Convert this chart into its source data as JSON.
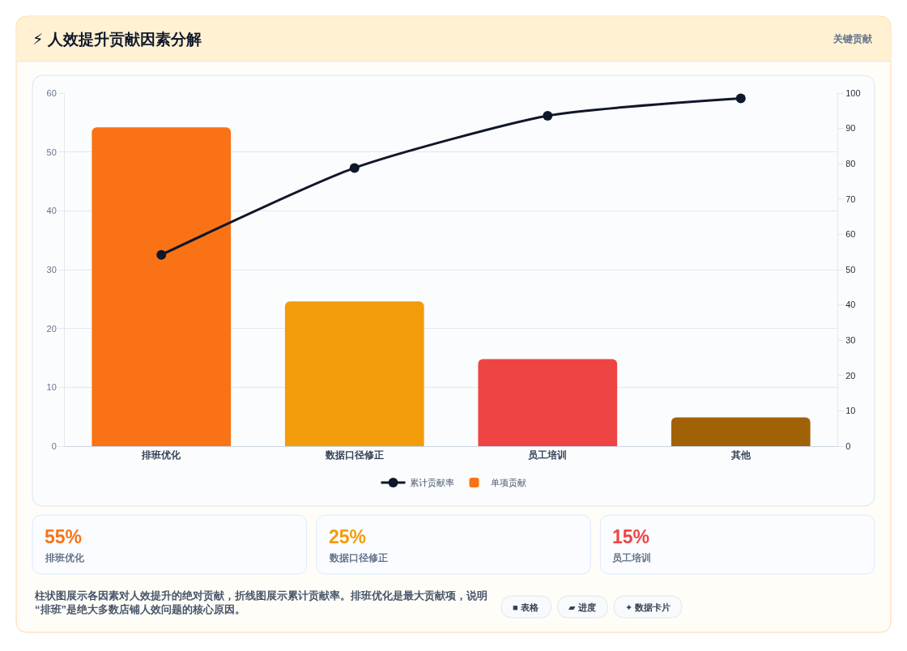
{
  "chart_data": [
    {
      "type": "bar",
      "title": "⚡ 人效提升贡献因素分解",
      "categories": [
        "排班优化",
        "数据口径修正",
        "员工培训",
        "其他"
      ],
      "series": [
        {
          "name": "累计贡献率",
          "type": "line",
          "axis": "y2",
          "color": "#0f172a",
          "values": [
            54.2,
            78.8,
            93.6,
            98.5
          ]
        },
        {
          "name": "单项贡献",
          "type": "bar",
          "colors": [
            "#f97316",
            "#f39c0b",
            "#ef4444",
            "#a16207"
          ],
          "values": [
            54.2,
            24.6,
            14.8,
            4.9
          ]
        }
      ],
      "ylim": [
        0,
        60
      ],
      "yticks": [
        0,
        10,
        20,
        30,
        40,
        50,
        60
      ],
      "y2lim": [
        0,
        100
      ],
      "y2ticks": [
        0,
        10,
        20,
        30,
        40,
        50,
        60,
        70,
        80,
        90,
        100
      ],
      "grid": "y",
      "legend": "bottom",
      "marker": "circle",
      "line_style": "solid",
      "annotations": [
        "关键贡献",
        "柱状图展示各因素对人效提升的绝对贡献，折线图展示累计贡献率。排班优化是最大贡献项，说明“排班”是绝大多数店铺人效问题的核心原因。",
        "■ 表格",
        "▰ 进度",
        "✦ 数据卡片"
      ]
    },
    {
      "type": "other",
      "title": "55%",
      "subtitle": "排班优化",
      "color": "#f97316"
    },
    {
      "type": "other",
      "title": "25%",
      "subtitle": "数据口径修正",
      "color": "#f39c0b"
    },
    {
      "type": "other",
      "title": "15%",
      "subtitle": "员工培训",
      "color": "#ef4444"
    }
  ]
}
